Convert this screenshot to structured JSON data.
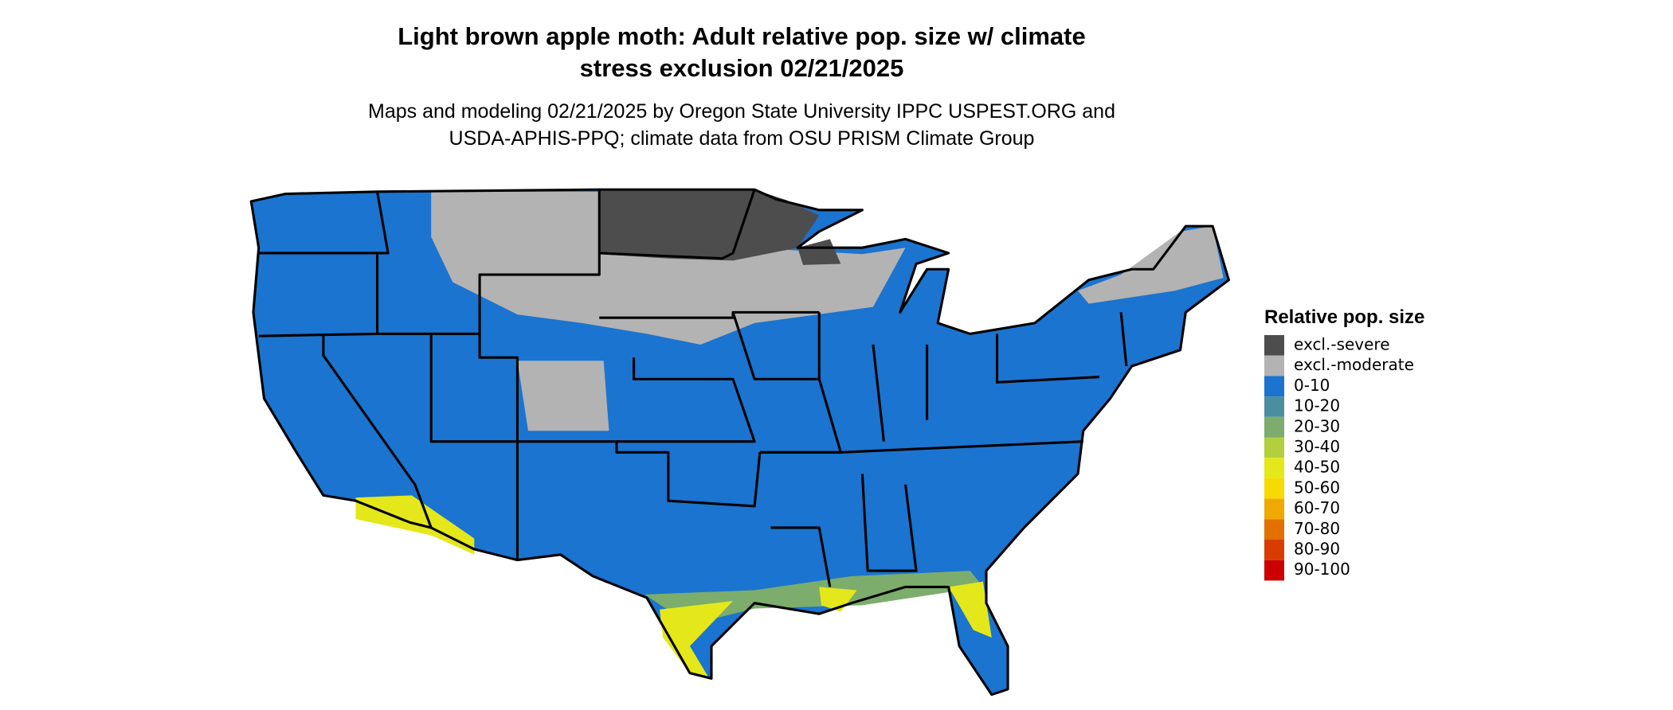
{
  "header": {
    "title_lines": [
      "Light brown apple moth: Adult relative pop. size w/ climate",
      "stress exclusion 02/21/2025"
    ],
    "subtitle_lines": [
      "Maps and modeling 02/21/2025 by Oregon State University IPPC USPEST.ORG and",
      "USDA-APHIS-PPQ; climate data from OSU PRISM Climate Group"
    ]
  },
  "legend": {
    "title": "Relative pop. size",
    "items": [
      {
        "label": "excl.-severe",
        "color": "#4d4d4d"
      },
      {
        "label": "excl.-moderate",
        "color": "#b3b3b3"
      },
      {
        "label": "0-10",
        "color": "#1b74cf"
      },
      {
        "label": "10-20",
        "color": "#4a8fa0"
      },
      {
        "label": "20-30",
        "color": "#7cad6c"
      },
      {
        "label": "30-40",
        "color": "#b3cf3e"
      },
      {
        "label": "40-50",
        "color": "#e4e71a"
      },
      {
        "label": "50-60",
        "color": "#f7db00"
      },
      {
        "label": "60-70",
        "color": "#f0a900"
      },
      {
        "label": "70-80",
        "color": "#e37100"
      },
      {
        "label": "80-90",
        "color": "#d83c00"
      },
      {
        "label": "90-100",
        "color": "#cc0000"
      }
    ]
  }
}
